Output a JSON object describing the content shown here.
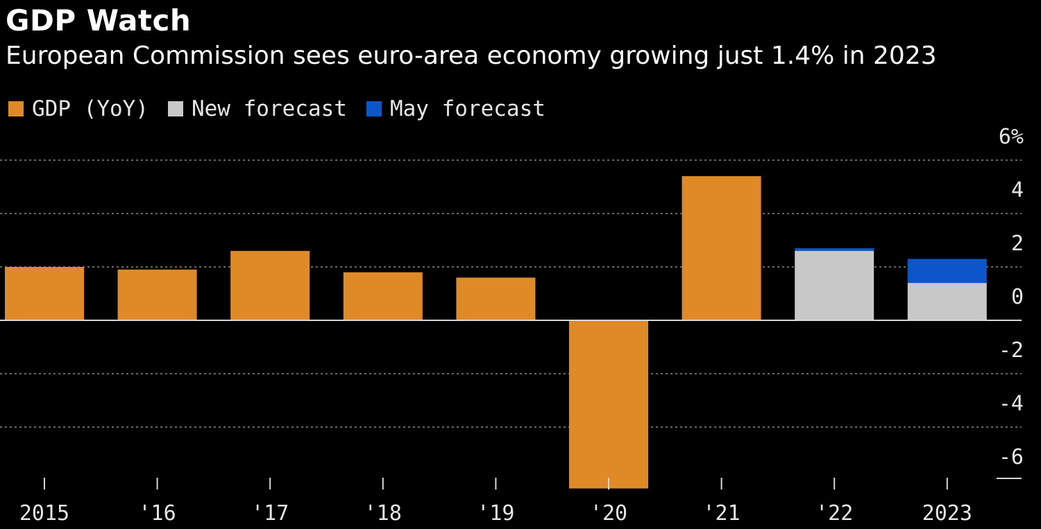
{
  "header": {
    "title": "GDP Watch",
    "subtitle": "European Commission sees euro-area economy growing just 1.4% in 2023"
  },
  "legend": [
    {
      "label": "GDP (YoY)",
      "color": "#e08a27"
    },
    {
      "label": "New forecast",
      "color": "#c8c8c8"
    },
    {
      "label": "May forecast",
      "color": "#0b57c9"
    }
  ],
  "chart_data": {
    "type": "bar",
    "title": "GDP Watch",
    "subtitle": "European Commission sees euro-area economy growing just 1.4% in 2023",
    "categories": [
      "2015",
      "'16",
      "'17",
      "'18",
      "'19",
      "'20",
      "'21",
      "'22",
      "2023"
    ],
    "series": [
      {
        "name": "GDP (YoY)",
        "color": "#e08a27",
        "values": [
          2.0,
          1.9,
          2.6,
          1.8,
          1.6,
          -6.3,
          5.4,
          null,
          null
        ]
      },
      {
        "name": "New forecast",
        "color": "#c8c8c8",
        "values": [
          null,
          null,
          null,
          null,
          null,
          null,
          null,
          2.6,
          1.4
        ]
      },
      {
        "name": "May forecast",
        "color": "#0b57c9",
        "values": [
          null,
          null,
          null,
          null,
          null,
          null,
          null,
          2.7,
          2.3
        ]
      }
    ],
    "y_ticks": [
      {
        "value": 6,
        "label": "6%"
      },
      {
        "value": 4,
        "label": "4"
      },
      {
        "value": 2,
        "label": "2"
      },
      {
        "value": 0,
        "label": "0"
      },
      {
        "value": -2,
        "label": "-2"
      },
      {
        "value": -4,
        "label": "-4"
      },
      {
        "value": -6,
        "label": "-6"
      }
    ],
    "ylim": [
      -6.3,
      6
    ],
    "ylabel": "",
    "xlabel": "",
    "grid": true,
    "axis_side": "right",
    "legend_position": "top-left"
  }
}
